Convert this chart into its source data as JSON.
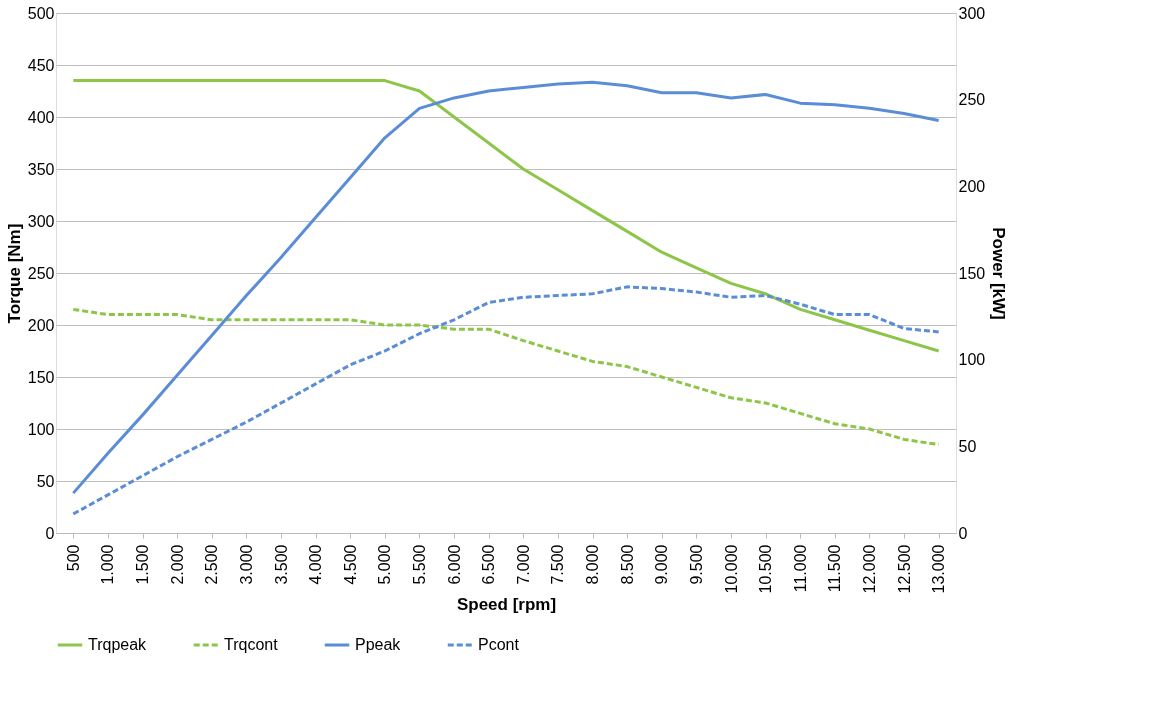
{
  "chart_data": {
    "type": "line",
    "xlabel": "Speed [rpm]",
    "ylabel": "Torque [Nm]",
    "y2label": "Power [kW]",
    "categories": [
      "500",
      "1.000",
      "1.500",
      "2.000",
      "2.500",
      "3.000",
      "3.500",
      "4.000",
      "4.500",
      "5.000",
      "5.500",
      "6.000",
      "6.500",
      "7.000",
      "7.500",
      "8.000",
      "8.500",
      "9.000",
      "9.500",
      "10.000",
      "10.500",
      "11.000",
      "11.500",
      "12.000",
      "12.500",
      "13.000"
    ],
    "series": [
      {
        "name": "Trqpeak",
        "color": "#8dc549",
        "line_style": "solid",
        "values": [
          435,
          435,
          435,
          435,
          435,
          435,
          435,
          435,
          435,
          435,
          425,
          400,
          375,
          350,
          330,
          310,
          290,
          270,
          255,
          240,
          230,
          215,
          205,
          195,
          185,
          175
        ]
      },
      {
        "name": "Trqcont",
        "color": "#8dc549",
        "line_style": "dashed",
        "values": [
          215,
          210,
          210,
          210,
          205,
          205,
          205,
          205,
          205,
          200,
          200,
          196,
          196,
          185,
          175,
          165,
          160,
          150,
          140,
          130,
          125,
          115,
          105,
          100,
          90,
          85
        ]
      },
      {
        "name": "Ppeak",
        "color": "#5b8dd6",
        "line_style": "solid",
        "axis": "y2",
        "values": [
          23,
          46,
          68,
          91,
          114,
          137,
          159,
          182,
          205,
          228,
          245,
          251,
          255,
          257,
          259,
          260,
          258,
          254,
          254,
          251,
          253,
          248,
          247,
          245,
          242,
          238
        ]
      },
      {
        "name": "Pcont",
        "color": "#5b8dd6",
        "line_style": "dashed",
        "axis": "y2",
        "values": [
          11,
          22,
          33,
          44,
          54,
          64,
          75,
          86,
          97,
          105,
          115,
          123,
          133,
          136,
          137,
          138,
          142,
          141,
          139,
          136,
          137,
          132,
          126,
          126,
          118,
          116
        ]
      }
    ],
    "ylim": [
      0,
      500
    ],
    "yticks": [
      0,
      50,
      100,
      150,
      200,
      250,
      300,
      350,
      400,
      450,
      500
    ],
    "y2lim": [
      0,
      300
    ],
    "y2ticks": [
      0,
      50,
      100,
      150,
      200,
      250,
      300
    ],
    "grid": "y",
    "legend": "bottom"
  }
}
